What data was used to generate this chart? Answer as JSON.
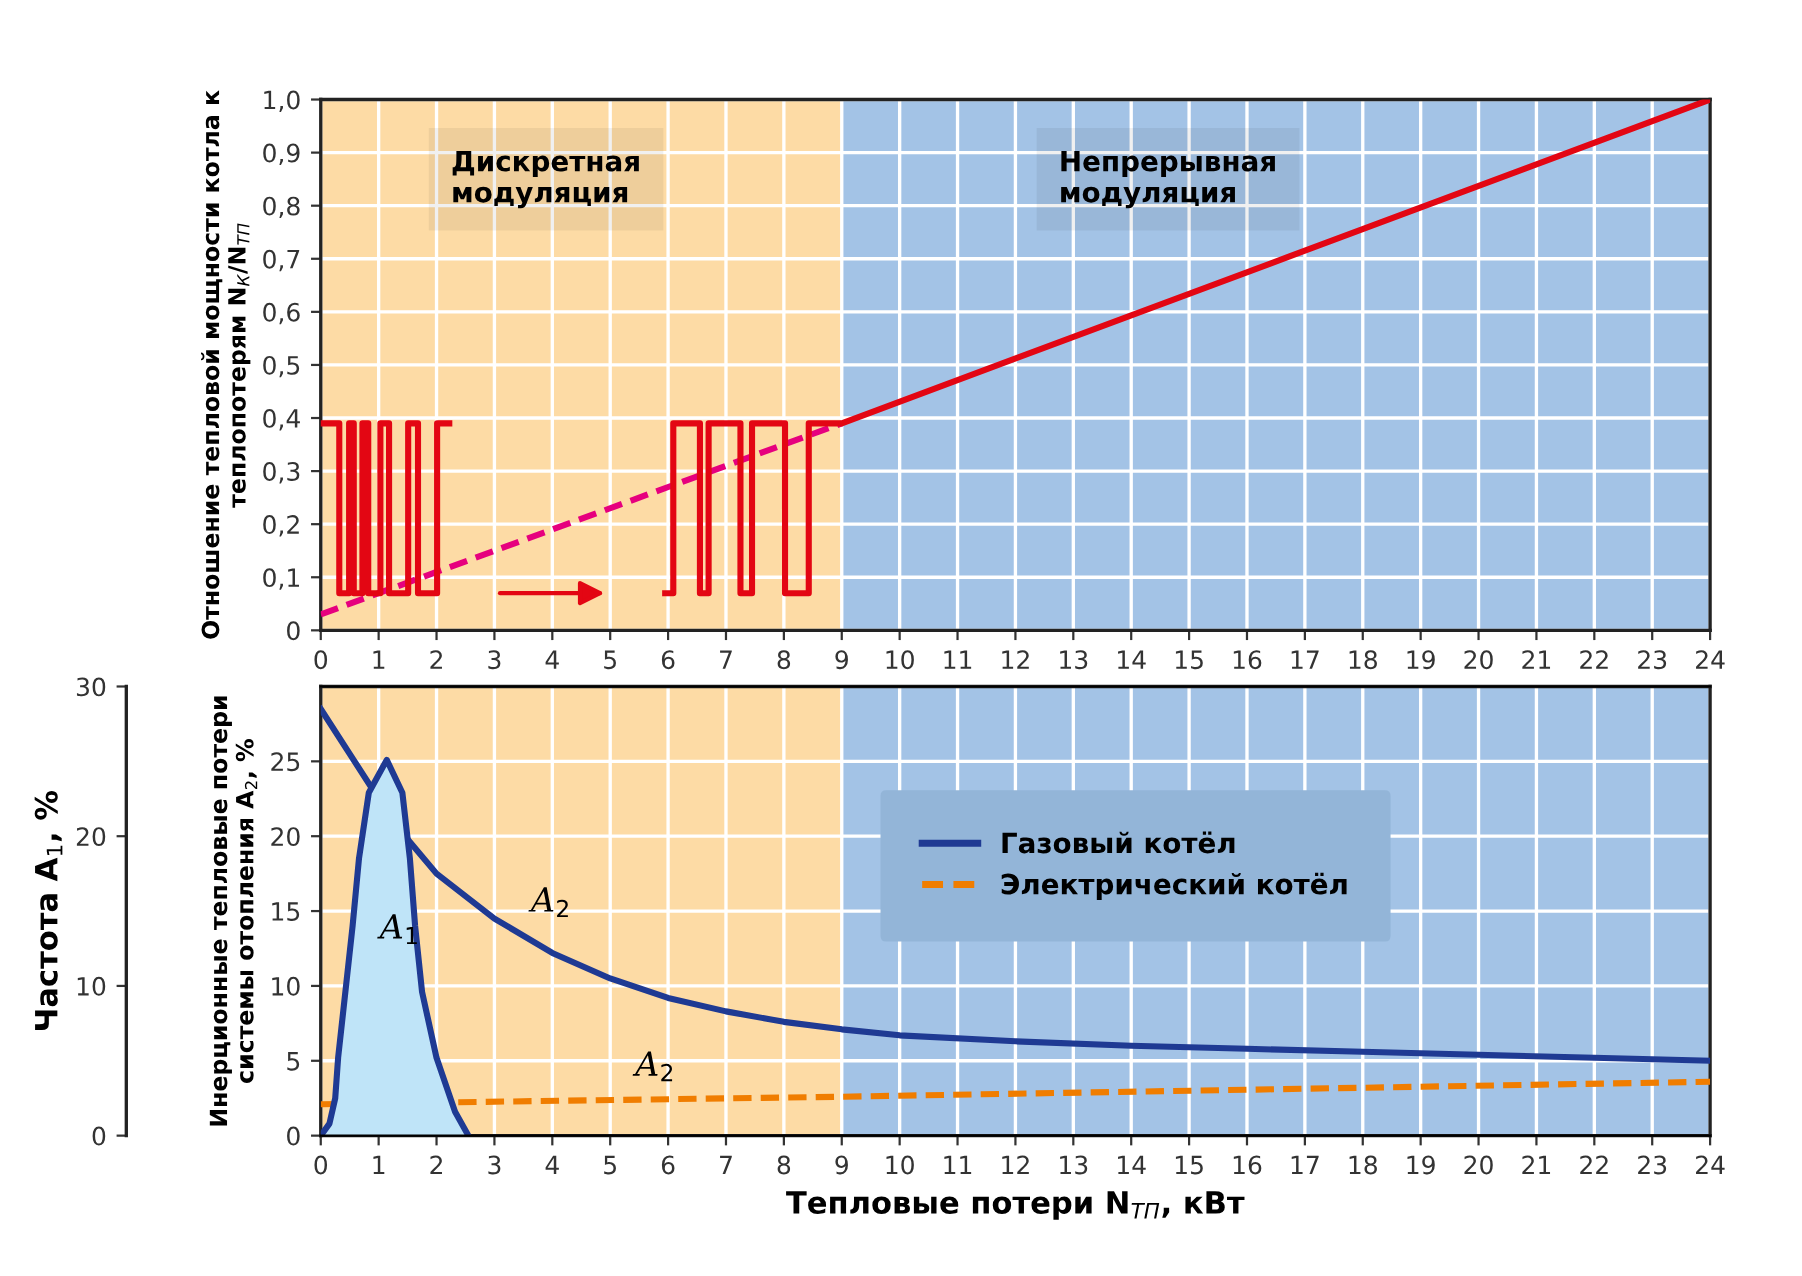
{
  "chart_data": [
    {
      "type": "line",
      "ylabel": "Отношение тепловой мощности котла к теплопотерям N$_{К}$/N$_{ТП}$",
      "xlim": [
        0,
        24
      ],
      "xticks": [
        0,
        1,
        2,
        3,
        4,
        5,
        6,
        7,
        8,
        9,
        10,
        11,
        12,
        13,
        14,
        15,
        16,
        17,
        18,
        19,
        20,
        21,
        22,
        23,
        24
      ],
      "ylim": [
        0,
        1.0
      ],
      "yticks": [
        0,
        {
          "value": 0.1,
          "label": "0,1"
        },
        {
          "value": 0.2,
          "label": "0,2"
        },
        {
          "value": 0.3,
          "label": "0,3"
        },
        {
          "value": 0.4,
          "label": "0,4"
        },
        {
          "value": 0.5,
          "label": "0,5"
        },
        {
          "value": 0.6,
          "label": "0,6"
        },
        {
          "value": 0.7,
          "label": "0,7"
        },
        {
          "value": 0.8,
          "label": "0,8"
        },
        {
          "value": 0.9,
          "label": "0,9"
        },
        {
          "value": 1.0,
          "label": "1,0"
        }
      ],
      "grid": true,
      "legend": false,
      "bands": [
        {
          "axis": "x",
          "from": 0,
          "to": 9,
          "label": "Дискретная\nмодуляция",
          "color": "#fddba5"
        },
        {
          "axis": "x",
          "from": 9,
          "to": 24,
          "label": "Непрерывная\nмодуляция",
          "color": "#a3c3e6"
        }
      ],
      "series": [
        {
          "color": "#e6007e",
          "line_style": "dashed",
          "x": [
            0,
            9
          ],
          "values": [
            0.03,
            0.39
          ]
        },
        {
          "color": "#e30613",
          "line_style": "solid",
          "x": [
            0,
            0.32,
            0.32,
            0.49,
            0.49,
            0.57,
            0.57,
            0.72,
            0.72,
            0.82,
            0.82,
            1.03,
            1.03,
            1.18,
            1.18,
            1.51,
            1.51,
            1.68,
            1.68,
            2.01,
            2.01,
            2.22
          ],
          "values": [
            0.39,
            0.39,
            0.07,
            0.07,
            0.39,
            0.39,
            0.07,
            0.07,
            0.39,
            0.39,
            0.07,
            0.07,
            0.39,
            0.39,
            0.07,
            0.07,
            0.39,
            0.39,
            0.07,
            0.07,
            0.39,
            0.39
          ]
        },
        {
          "color": "#e30613",
          "line_style": "solid",
          "x": [
            5.95,
            6.09,
            6.09,
            6.55,
            6.55,
            6.7,
            6.7,
            7.25,
            7.25,
            7.45,
            7.45,
            8.02,
            8.02,
            8.43,
            8.43,
            9.0,
            24
          ],
          "values": [
            0.07,
            0.07,
            0.39,
            0.39,
            0.07,
            0.07,
            0.39,
            0.39,
            0.07,
            0.07,
            0.39,
            0.39,
            0.07,
            0.07,
            0.39,
            0.39,
            1.0
          ]
        }
      ]
    },
    {
      "type": "line",
      "xlabel": "Тепловые потери N$_{ТП}$, кВт",
      "ylabel": "Инерционные тепловые потери\nсистемы отопления A$_{2}$, %",
      "y2label": "Частота A$_{1}$, %",
      "xlim": [
        0,
        24
      ],
      "xticks": [
        0,
        1,
        2,
        3,
        4,
        5,
        6,
        7,
        8,
        9,
        10,
        11,
        12,
        13,
        14,
        15,
        16,
        17,
        18,
        19,
        20,
        21,
        22,
        23,
        24
      ],
      "ylim": [
        0,
        30
      ],
      "yticks": [
        0,
        5,
        10,
        15,
        20,
        25
      ],
      "y2lim": [
        0,
        30
      ],
      "y2ticks": [
        0,
        10,
        20,
        30
      ],
      "grid": true,
      "legend": "top right",
      "bands": [
        {
          "axis": "x",
          "from": 0,
          "to": 9,
          "color": "#fddba5"
        },
        {
          "axis": "x",
          "from": 9,
          "to": 24,
          "color": "#a3c3e6"
        }
      ],
      "annotations": [
        {
          "text": "A$_{1}$",
          "x": 0.6,
          "y": 16
        },
        {
          "text": "A$_{2}$",
          "x": 3.5,
          "y": 13.35
        },
        {
          "text": "A$_{2}$",
          "x": 5.3,
          "y": 2.39
        }
      ],
      "series": [
        {
          "type": "area",
          "axis": "y2",
          "color": "#bfe4f8",
          "x": [
            0,
            0.15,
            0.25,
            0.3,
            0.55,
            0.66,
            0.83,
            1.14,
            1.41,
            1.54,
            1.63,
            1.75,
            2.0,
            2.32,
            2.55
          ],
          "values": [
            0,
            0.8,
            2.5,
            5.2,
            14,
            18.5,
            22.9,
            25.1,
            22.9,
            18.5,
            14,
            9.6,
            5.2,
            1.6,
            0
          ]
        },
        {
          "name": "Газовый котёл",
          "color": "#1f3a93",
          "line_style": "solid",
          "x": [
            0,
            0.5,
            1,
            1.5,
            2,
            3,
            4,
            5,
            6,
            7,
            8,
            9,
            10,
            12,
            14,
            16,
            18,
            20,
            22,
            24
          ],
          "values": [
            28.5,
            25.5,
            22.5,
            19.8,
            17.5,
            14.5,
            12.2,
            10.5,
            9.2,
            8.3,
            7.6,
            7.1,
            6.7,
            6.3,
            6.0,
            5.8,
            5.6,
            5.4,
            5.2,
            5.0
          ]
        },
        {
          "name": "Электрический котёл",
          "color": "#f07d00",
          "line_style": "dashed",
          "x": [
            0,
            9,
            24
          ],
          "values": [
            2.1,
            2.6,
            3.6
          ]
        }
      ]
    }
  ]
}
